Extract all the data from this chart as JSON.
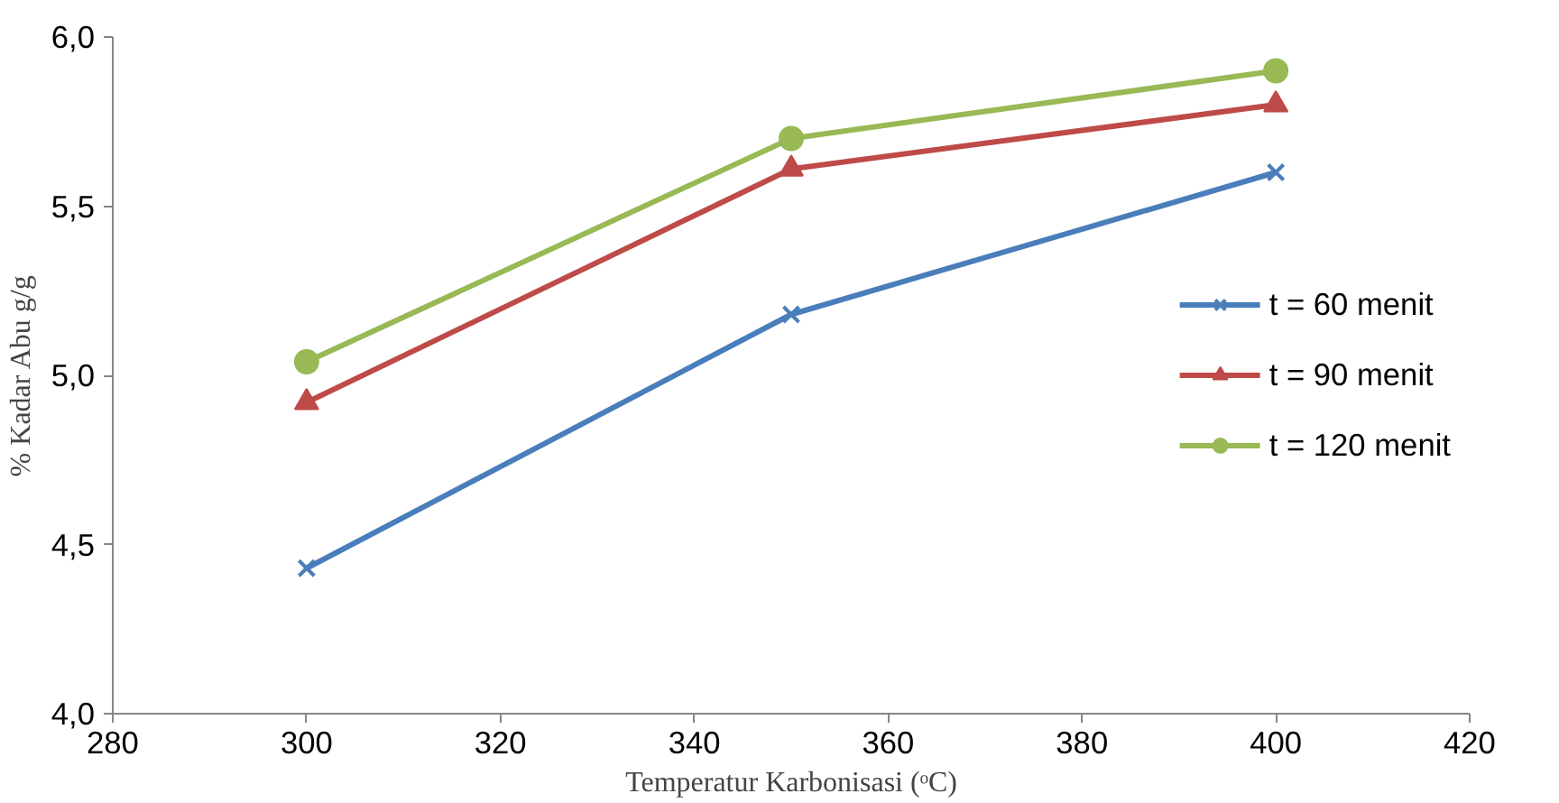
{
  "chart_data": {
    "type": "line",
    "xlabel": "Temperatur Karbonisasi (ᵒC)",
    "ylabel": "% Kadar Abu g/g",
    "x": [
      300,
      350,
      400
    ],
    "series": [
      {
        "name": "t = 60 menit",
        "color": "#4a7ebb",
        "marker": "cross",
        "values": [
          4.43,
          5.18,
          5.6
        ]
      },
      {
        "name": "t = 90 menit",
        "color": "#be4b48",
        "marker": "triangle",
        "values": [
          4.92,
          5.61,
          5.8
        ]
      },
      {
        "name": "t = 120 menit",
        "color": "#98b954",
        "marker": "circle",
        "values": [
          5.04,
          5.7,
          5.9
        ]
      }
    ],
    "xlim": [
      280,
      420
    ],
    "xticks": [
      280,
      300,
      320,
      340,
      360,
      380,
      400,
      420
    ],
    "ylim": [
      4.0,
      6.0
    ],
    "yticks": [
      {
        "value": 4.0,
        "label": "4,0"
      },
      {
        "value": 4.5,
        "label": "4,5"
      },
      {
        "value": 5.0,
        "label": "5,0"
      },
      {
        "value": 5.5,
        "label": "5,5"
      },
      {
        "value": 6.0,
        "label": "6,0"
      }
    ],
    "grid": false,
    "legend": "right"
  }
}
